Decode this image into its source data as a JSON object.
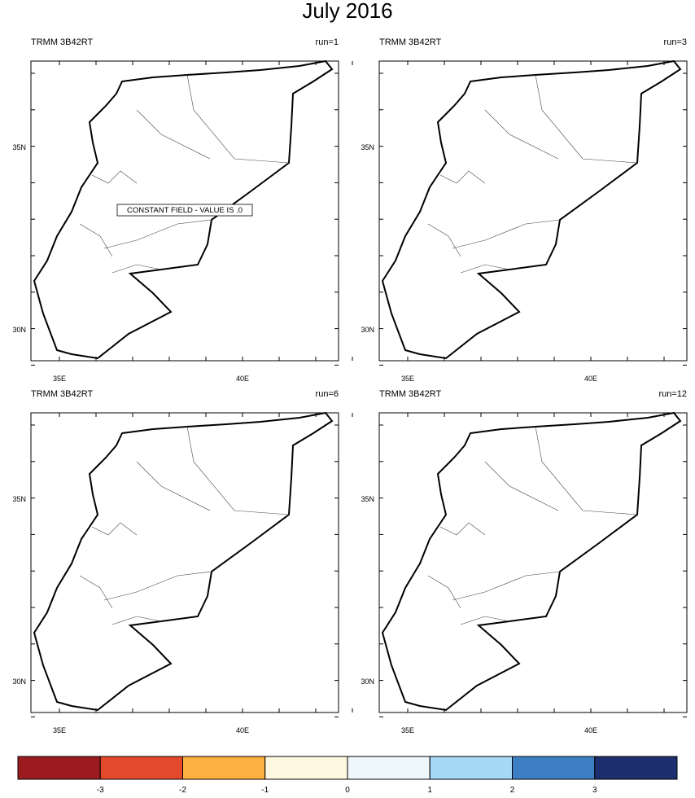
{
  "title": "July 2016",
  "panels": [
    {
      "label": "TRMM 3B42RT",
      "run": "run=1",
      "annotation": "CONSTANT FIELD - VALUE IS .0"
    },
    {
      "label": "TRMM 3B42RT",
      "run": "run=3"
    },
    {
      "label": "TRMM 3B42RT",
      "run": "run=6"
    },
    {
      "label": "TRMM 3B42RT",
      "run": "run=12"
    }
  ],
  "lat_ticks": [
    "35N",
    "30N"
  ],
  "lon_ticks": [
    "35E",
    "40E"
  ],
  "colorbar": {
    "colors": [
      "#9b1b1e",
      "#e34a2b",
      "#fbb040",
      "#fff8e1",
      "#eef7fc",
      "#a6d9f5",
      "#3d7fc4",
      "#1d2f6e"
    ],
    "labels": [
      -3,
      -2,
      -1,
      0,
      1,
      2,
      3
    ]
  }
}
